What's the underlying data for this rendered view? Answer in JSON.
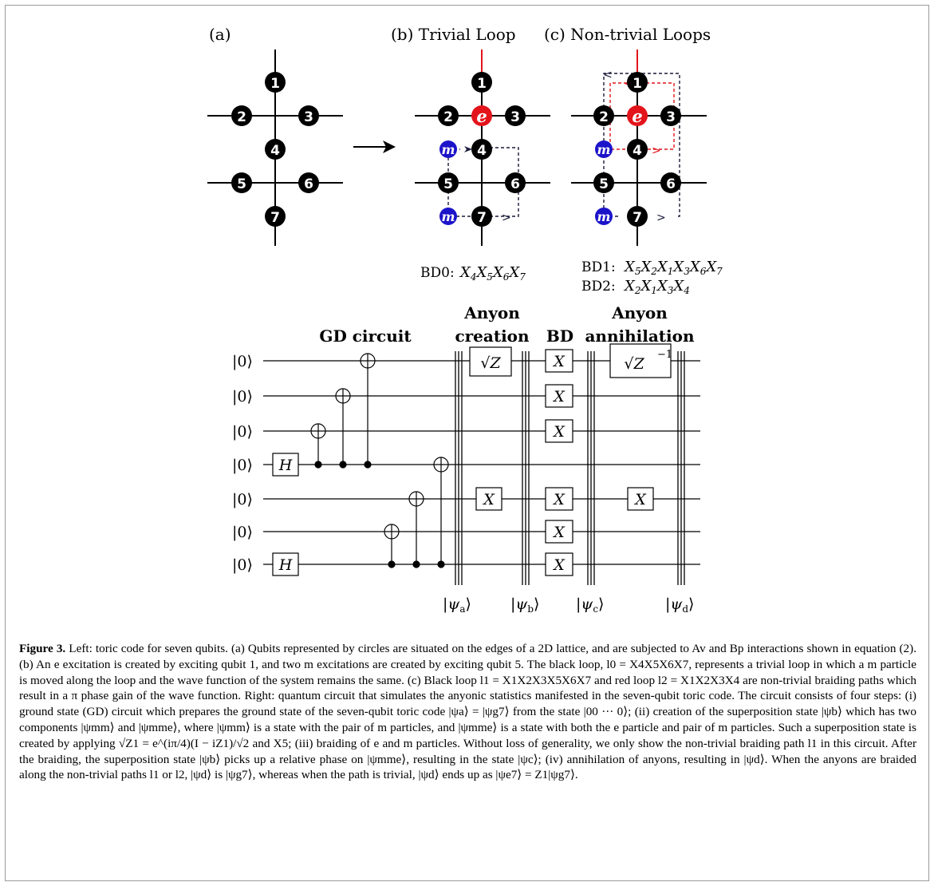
{
  "panels": {
    "a": {
      "label": "(a)"
    },
    "b": {
      "label": "(b) Trivial Loop",
      "bd_label": "BD0:",
      "bd_ops": "X4X5X6X7"
    },
    "c": {
      "label": "(c) Non-trivial Loops",
      "bd1_label": "BD1:",
      "bd1_ops": "X5X2X1X3X6X7",
      "bd2_label": "BD2:",
      "bd2_ops": "X2X1X3X4"
    }
  },
  "qubits": [
    "1",
    "2",
    "3",
    "4",
    "5",
    "6",
    "7"
  ],
  "anyons": {
    "e": "e",
    "m": "m"
  },
  "colors": {
    "black_qubit": "#000000",
    "e_particle": "#e3141b",
    "m_particle": "#1c14c9",
    "red_path": "#e3141b",
    "dashed_path": "#1a1a3a",
    "frame": "#9a9a9a"
  },
  "circuit": {
    "stage_titles": {
      "gd": "GD circuit",
      "anyon1": "Anyon",
      "creation": "creation",
      "bd": "BD",
      "anyon2": "Anyon",
      "annihilation": "annihilation"
    },
    "inputs": [
      "|0⟩",
      "|0⟩",
      "|0⟩",
      "|0⟩",
      "|0⟩",
      "|0⟩",
      "|0⟩"
    ],
    "h_gate": "H",
    "x_gate": "X",
    "sqrtz_gate": "√Z",
    "sqrtz_inv_gate": "√Z",
    "sqrtz_inv_exp": "−1",
    "states": [
      "|ψa⟩",
      "|ψb⟩",
      "|ψc⟩",
      "|ψd⟩"
    ]
  },
  "caption": {
    "title": "Figure 3.",
    "text": "Left: toric code for seven qubits. (a) Qubits represented by circles are situated on the edges of a 2D lattice, and are subjected to Av and Bp interactions shown in equation (2). (b) An e excitation is created by exciting qubit 1, and two m excitations are created by exciting qubit 5. The black loop, l0 = X4X5X6X7, represents a trivial loop in which a m particle is moved along the loop and the wave function of the system remains the same. (c) Black loop l1 = X1X2X3X5X6X7 and red loop l2 = X1X2X3X4 are non-trivial braiding paths which result in a π phase gain of the wave function. Right: quantum circuit that simulates the anyonic statistics manifested in the seven-qubit toric code. The circuit consists of four steps: (i) ground state (GD) circuit which prepares the ground state of the seven-qubit toric code |ψa⟩ = |ψg7⟩ from the state |00 ··· 0⟩; (ii) creation of the superposition state |ψb⟩ which has two components |ψmm⟩ and |ψmme⟩, where |ψmm⟩ is a state with the pair of m particles, and |ψmme⟩ is a state with both the e particle and pair of m particles. Such a superposition state is created by applying √Z1 = e^(iπ/4)(I − iZ1)/√2 and X5; (iii) braiding of e and m particles. Without loss of generality, we only show the non-trivial braiding path l1 in this circuit. After the braiding, the superposition state |ψb⟩ picks up a relative phase on |ψmme⟩, resulting in the state |ψc⟩; (iv) annihilation of anyons, resulting in |ψd⟩. When the anyons are braided along the non-trivial paths l1 or l2, |ψd⟩ is |ψg7⟩, whereas when the path is trivial, |ψd⟩ ends up as |ψe7⟩ = Z1|ψg7⟩."
  }
}
